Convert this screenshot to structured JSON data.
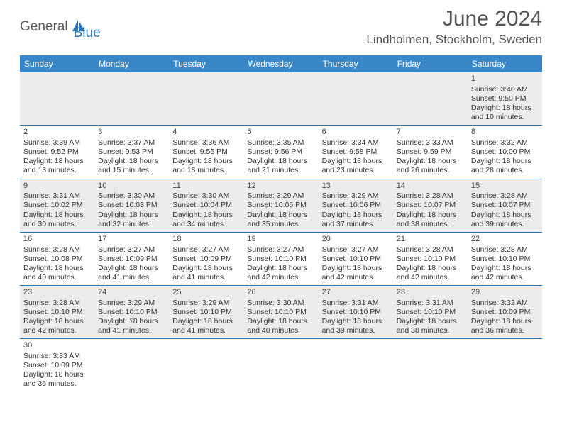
{
  "brand": {
    "general": "General",
    "blue": "Blue"
  },
  "header": {
    "monthYear": "June 2024",
    "location": "Lindholmen, Stockholm, Sweden"
  },
  "colors": {
    "headerRow": "#3a87c8",
    "rowBorder": "#2b75b3",
    "oddRow": "#ececec",
    "evenRow": "#ffffff",
    "text": "#333333",
    "brandBlue": "#2b75b3",
    "brandGray": "#585858"
  },
  "dayNames": [
    "Sunday",
    "Monday",
    "Tuesday",
    "Wednesday",
    "Thursday",
    "Friday",
    "Saturday"
  ],
  "days": {
    "1": {
      "sunrise": "Sunrise: 3:40 AM",
      "sunset": "Sunset: 9:50 PM",
      "daylight1": "Daylight: 18 hours",
      "daylight2": "and 10 minutes."
    },
    "2": {
      "sunrise": "Sunrise: 3:39 AM",
      "sunset": "Sunset: 9:52 PM",
      "daylight1": "Daylight: 18 hours",
      "daylight2": "and 13 minutes."
    },
    "3": {
      "sunrise": "Sunrise: 3:37 AM",
      "sunset": "Sunset: 9:53 PM",
      "daylight1": "Daylight: 18 hours",
      "daylight2": "and 15 minutes."
    },
    "4": {
      "sunrise": "Sunrise: 3:36 AM",
      "sunset": "Sunset: 9:55 PM",
      "daylight1": "Daylight: 18 hours",
      "daylight2": "and 18 minutes."
    },
    "5": {
      "sunrise": "Sunrise: 3:35 AM",
      "sunset": "Sunset: 9:56 PM",
      "daylight1": "Daylight: 18 hours",
      "daylight2": "and 21 minutes."
    },
    "6": {
      "sunrise": "Sunrise: 3:34 AM",
      "sunset": "Sunset: 9:58 PM",
      "daylight1": "Daylight: 18 hours",
      "daylight2": "and 23 minutes."
    },
    "7": {
      "sunrise": "Sunrise: 3:33 AM",
      "sunset": "Sunset: 9:59 PM",
      "daylight1": "Daylight: 18 hours",
      "daylight2": "and 26 minutes."
    },
    "8": {
      "sunrise": "Sunrise: 3:32 AM",
      "sunset": "Sunset: 10:00 PM",
      "daylight1": "Daylight: 18 hours",
      "daylight2": "and 28 minutes."
    },
    "9": {
      "sunrise": "Sunrise: 3:31 AM",
      "sunset": "Sunset: 10:02 PM",
      "daylight1": "Daylight: 18 hours",
      "daylight2": "and 30 minutes."
    },
    "10": {
      "sunrise": "Sunrise: 3:30 AM",
      "sunset": "Sunset: 10:03 PM",
      "daylight1": "Daylight: 18 hours",
      "daylight2": "and 32 minutes."
    },
    "11": {
      "sunrise": "Sunrise: 3:30 AM",
      "sunset": "Sunset: 10:04 PM",
      "daylight1": "Daylight: 18 hours",
      "daylight2": "and 34 minutes."
    },
    "12": {
      "sunrise": "Sunrise: 3:29 AM",
      "sunset": "Sunset: 10:05 PM",
      "daylight1": "Daylight: 18 hours",
      "daylight2": "and 35 minutes."
    },
    "13": {
      "sunrise": "Sunrise: 3:29 AM",
      "sunset": "Sunset: 10:06 PM",
      "daylight1": "Daylight: 18 hours",
      "daylight2": "and 37 minutes."
    },
    "14": {
      "sunrise": "Sunrise: 3:28 AM",
      "sunset": "Sunset: 10:07 PM",
      "daylight1": "Daylight: 18 hours",
      "daylight2": "and 38 minutes."
    },
    "15": {
      "sunrise": "Sunrise: 3:28 AM",
      "sunset": "Sunset: 10:07 PM",
      "daylight1": "Daylight: 18 hours",
      "daylight2": "and 39 minutes."
    },
    "16": {
      "sunrise": "Sunrise: 3:28 AM",
      "sunset": "Sunset: 10:08 PM",
      "daylight1": "Daylight: 18 hours",
      "daylight2": "and 40 minutes."
    },
    "17": {
      "sunrise": "Sunrise: 3:27 AM",
      "sunset": "Sunset: 10:09 PM",
      "daylight1": "Daylight: 18 hours",
      "daylight2": "and 41 minutes."
    },
    "18": {
      "sunrise": "Sunrise: 3:27 AM",
      "sunset": "Sunset: 10:09 PM",
      "daylight1": "Daylight: 18 hours",
      "daylight2": "and 41 minutes."
    },
    "19": {
      "sunrise": "Sunrise: 3:27 AM",
      "sunset": "Sunset: 10:10 PM",
      "daylight1": "Daylight: 18 hours",
      "daylight2": "and 42 minutes."
    },
    "20": {
      "sunrise": "Sunrise: 3:27 AM",
      "sunset": "Sunset: 10:10 PM",
      "daylight1": "Daylight: 18 hours",
      "daylight2": "and 42 minutes."
    },
    "21": {
      "sunrise": "Sunrise: 3:28 AM",
      "sunset": "Sunset: 10:10 PM",
      "daylight1": "Daylight: 18 hours",
      "daylight2": "and 42 minutes."
    },
    "22": {
      "sunrise": "Sunrise: 3:28 AM",
      "sunset": "Sunset: 10:10 PM",
      "daylight1": "Daylight: 18 hours",
      "daylight2": "and 42 minutes."
    },
    "23": {
      "sunrise": "Sunrise: 3:28 AM",
      "sunset": "Sunset: 10:10 PM",
      "daylight1": "Daylight: 18 hours",
      "daylight2": "and 42 minutes."
    },
    "24": {
      "sunrise": "Sunrise: 3:29 AM",
      "sunset": "Sunset: 10:10 PM",
      "daylight1": "Daylight: 18 hours",
      "daylight2": "and 41 minutes."
    },
    "25": {
      "sunrise": "Sunrise: 3:29 AM",
      "sunset": "Sunset: 10:10 PM",
      "daylight1": "Daylight: 18 hours",
      "daylight2": "and 41 minutes."
    },
    "26": {
      "sunrise": "Sunrise: 3:30 AM",
      "sunset": "Sunset: 10:10 PM",
      "daylight1": "Daylight: 18 hours",
      "daylight2": "and 40 minutes."
    },
    "27": {
      "sunrise": "Sunrise: 3:31 AM",
      "sunset": "Sunset: 10:10 PM",
      "daylight1": "Daylight: 18 hours",
      "daylight2": "and 39 minutes."
    },
    "28": {
      "sunrise": "Sunrise: 3:31 AM",
      "sunset": "Sunset: 10:10 PM",
      "daylight1": "Daylight: 18 hours",
      "daylight2": "and 38 minutes."
    },
    "29": {
      "sunrise": "Sunrise: 3:32 AM",
      "sunset": "Sunset: 10:09 PM",
      "daylight1": "Daylight: 18 hours",
      "daylight2": "and 36 minutes."
    },
    "30": {
      "sunrise": "Sunrise: 3:33 AM",
      "sunset": "Sunset: 10:09 PM",
      "daylight1": "Daylight: 18 hours",
      "daylight2": "and 35 minutes."
    }
  },
  "grid": [
    [
      null,
      null,
      null,
      null,
      null,
      null,
      1
    ],
    [
      2,
      3,
      4,
      5,
      6,
      7,
      8
    ],
    [
      9,
      10,
      11,
      12,
      13,
      14,
      15
    ],
    [
      16,
      17,
      18,
      19,
      20,
      21,
      22
    ],
    [
      23,
      24,
      25,
      26,
      27,
      28,
      29
    ],
    [
      30,
      null,
      null,
      null,
      null,
      null,
      null
    ]
  ]
}
